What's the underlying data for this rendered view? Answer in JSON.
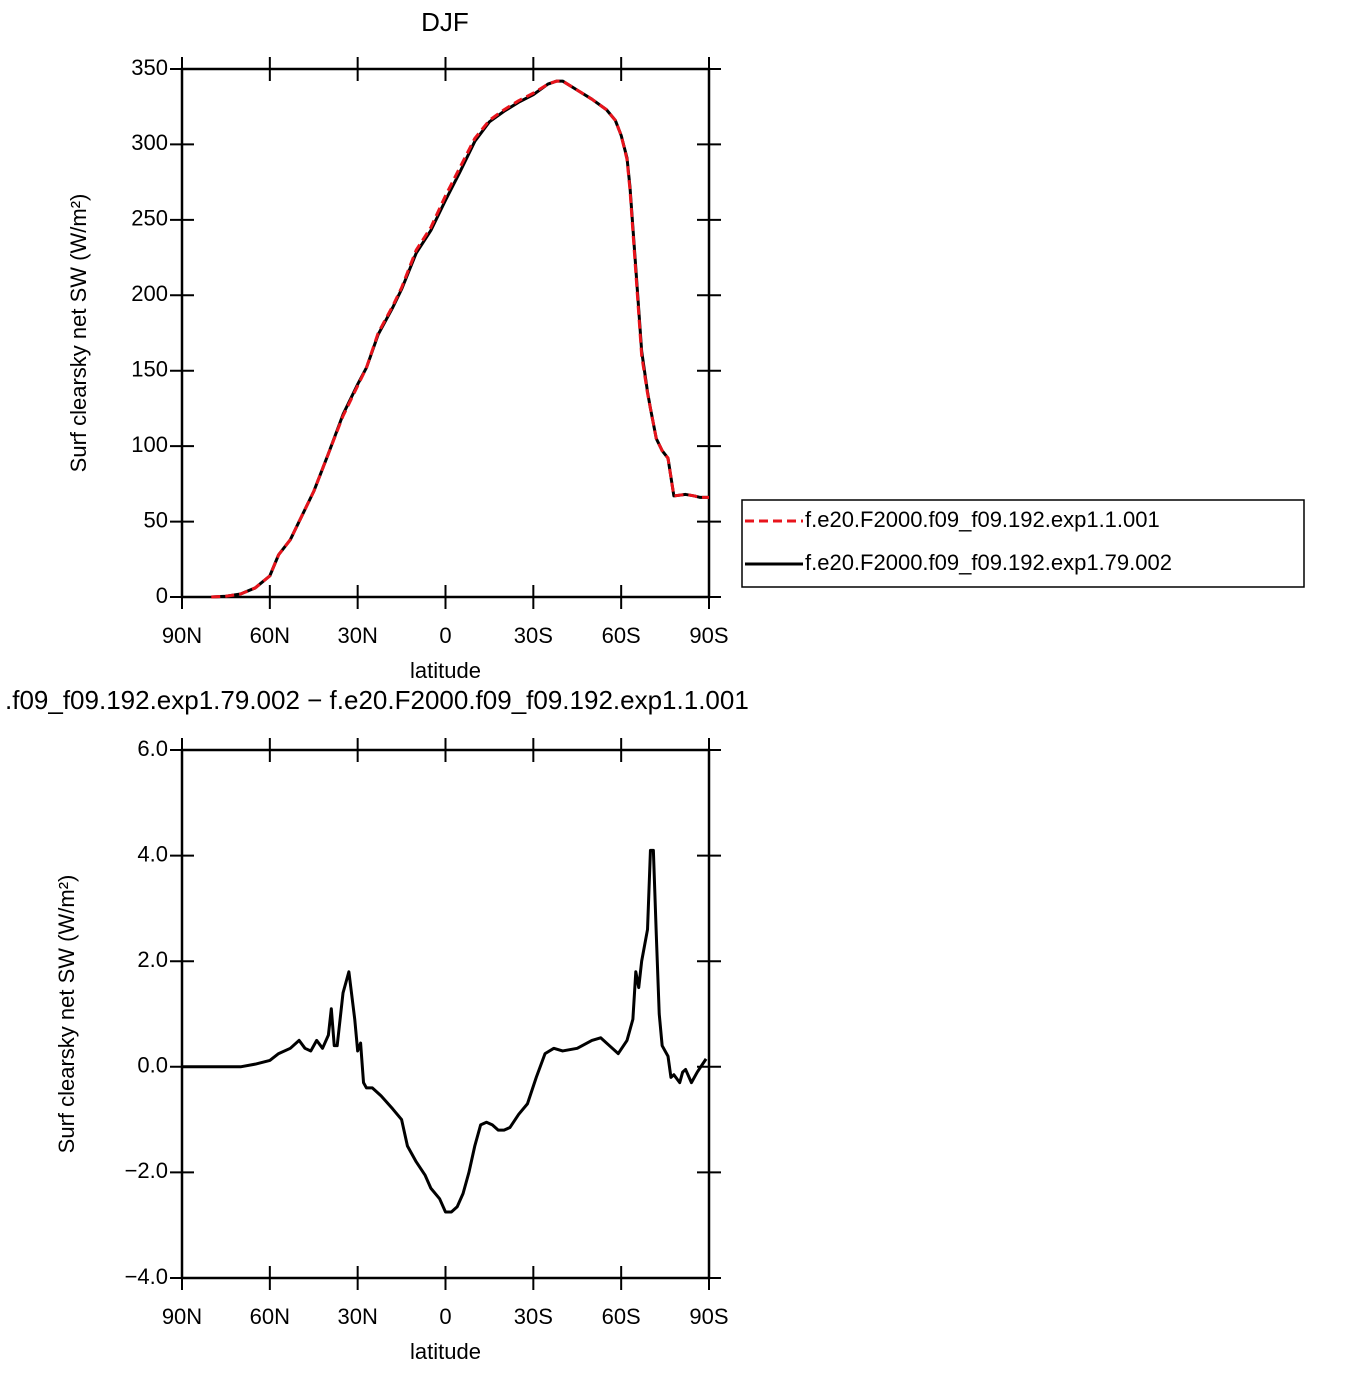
{
  "chart_data": [
    {
      "type": "line",
      "title": "DJF",
      "xlabel": "latitude",
      "ylabel": "Surf clearsky net SW (W/m²)",
      "x": [
        80,
        75,
        70,
        65,
        60,
        57,
        53,
        50,
        45,
        40,
        35,
        30,
        27,
        23,
        18,
        15,
        10,
        5,
        0,
        -5,
        -10,
        -15,
        -20,
        -25,
        -30,
        -35,
        -38,
        -40,
        -45,
        -50,
        -55,
        -58,
        -60,
        -62,
        -63,
        -65,
        -67,
        -69,
        -70,
        -72,
        -74,
        -76,
        -78,
        -82,
        -85,
        -87,
        -90
      ],
      "xlim": [
        90,
        -90
      ],
      "xticks": [
        {
          "value": 90,
          "label": "90N"
        },
        {
          "value": 60,
          "label": "60N"
        },
        {
          "value": 30,
          "label": "30N"
        },
        0,
        {
          "value": -30,
          "label": "30S"
        },
        {
          "value": -60,
          "label": "60S"
        },
        {
          "value": -90,
          "label": "90S"
        }
      ],
      "ylim": [
        0,
        350
      ],
      "yticks": [
        0,
        50,
        100,
        150,
        200,
        250,
        300,
        350
      ],
      "legend": "outside-right",
      "series": [
        {
          "name": "f.e20.F2000.f09_f09.192.exp1.1.001",
          "color": "#e8141c",
          "dash": true,
          "values": [
            0,
            0.5,
            2,
            6,
            14,
            28,
            38,
            50,
            70,
            95,
            120,
            140,
            152,
            175,
            193,
            205,
            230,
            245,
            266,
            285,
            304,
            316,
            323,
            329,
            334,
            340,
            342,
            342,
            336,
            330,
            323,
            316,
            306,
            290,
            270,
            215,
            160,
            135,
            125,
            105,
            97,
            92,
            67,
            68,
            67,
            66,
            66
          ]
        },
        {
          "name": "f.e20.F2000.f09_f09.192.exp1.79.002",
          "color": "#000000",
          "dash": false,
          "values": [
            0,
            0.5,
            2,
            6,
            14,
            28,
            38,
            50,
            70,
            95,
            121,
            141,
            152,
            174,
            192,
            204,
            228,
            243,
            263,
            282,
            302,
            315,
            322,
            328,
            333,
            340,
            342,
            342,
            336,
            330,
            323,
            316,
            306,
            291,
            272,
            218,
            163,
            136,
            125,
            105,
            97,
            92,
            67,
            68,
            67,
            66,
            66
          ]
        }
      ]
    },
    {
      "type": "line",
      "title": ".f09_f09.192.exp1.79.002 − f.e20.F2000.f09_f09.192.exp1.1.001",
      "xlabel": "latitude",
      "ylabel": "Surf clearsky net SW (W/m²)",
      "x": [
        90,
        80,
        70,
        65,
        60,
        57,
        53,
        50,
        48,
        46,
        44,
        42,
        40,
        39,
        38,
        37,
        35,
        33,
        31,
        30,
        29,
        28,
        27,
        25,
        22,
        18,
        15,
        13,
        10,
        7,
        5,
        2,
        0,
        -2,
        -4,
        -6,
        -8,
        -10,
        -12,
        -14,
        -16,
        -18,
        -20,
        -22,
        -25,
        -28,
        -31,
        -34,
        -37,
        -40,
        -45,
        -50,
        -53,
        -56,
        -59,
        -62,
        -64,
        -65,
        -66,
        -67,
        -69,
        -70,
        -71,
        -72,
        -73,
        -74,
        -76,
        -77,
        -78,
        -80,
        -81,
        -82,
        -84,
        -86,
        -89
      ],
      "xlim": [
        90,
        -90
      ],
      "xticks": [
        {
          "value": 90,
          "label": "90N"
        },
        {
          "value": 60,
          "label": "60N"
        },
        {
          "value": 30,
          "label": "30N"
        },
        0,
        {
          "value": -30,
          "label": "30S"
        },
        {
          "value": -60,
          "label": "60S"
        },
        {
          "value": -90,
          "label": "90S"
        }
      ],
      "ylim": [
        -4,
        6
      ],
      "yticks": [
        {
          "value": -4,
          "label": "−4.0"
        },
        {
          "value": -2,
          "label": "−2.0"
        },
        {
          "value": 0,
          "label": "0.0"
        },
        {
          "value": 2,
          "label": "2.0"
        },
        {
          "value": 4,
          "label": "4.0"
        },
        {
          "value": 6,
          "label": "6.0"
        }
      ],
      "color": "#000000",
      "values": [
        0,
        0,
        0,
        0.05,
        0.12,
        0.25,
        0.35,
        0.5,
        0.35,
        0.3,
        0.5,
        0.35,
        0.6,
        1.1,
        0.4,
        0.4,
        1.4,
        1.8,
        0.9,
        0.3,
        0.45,
        -0.3,
        -0.4,
        -0.4,
        -0.55,
        -0.8,
        -1.0,
        -1.5,
        -1.8,
        -2.05,
        -2.3,
        -2.5,
        -2.75,
        -2.75,
        -2.65,
        -2.4,
        -2.0,
        -1.5,
        -1.1,
        -1.05,
        -1.1,
        -1.2,
        -1.2,
        -1.15,
        -0.9,
        -0.7,
        -0.2,
        0.25,
        0.35,
        0.3,
        0.35,
        0.5,
        0.55,
        0.4,
        0.25,
        0.5,
        0.9,
        1.8,
        1.5,
        2.0,
        2.6,
        4.1,
        4.1,
        2.5,
        1.0,
        0.4,
        0.2,
        -0.2,
        -0.15,
        -0.3,
        -0.1,
        -0.05,
        -0.3,
        -0.1,
        0.15
      ]
    }
  ]
}
